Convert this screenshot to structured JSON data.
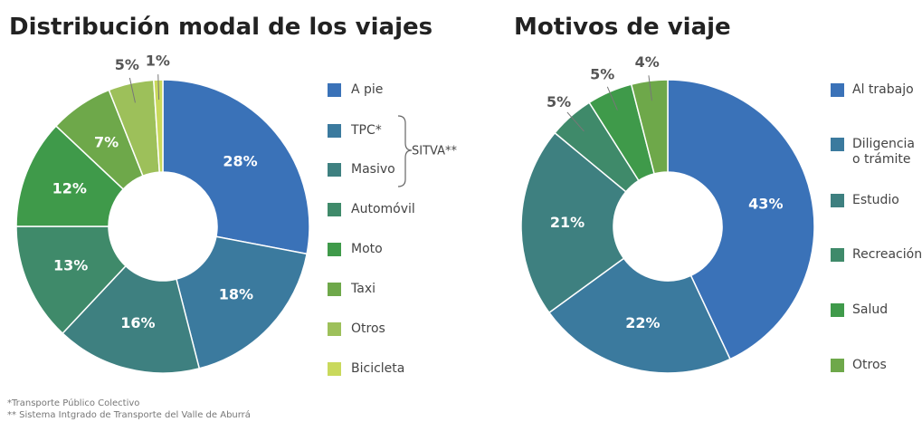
{
  "chart_data": [
    {
      "type": "donut",
      "title": "Distribución modal de los viajes",
      "categories": [
        "A pie",
        "TPC*",
        "Masivo",
        "Automóvil",
        "Moto",
        "Taxi",
        "Otros",
        "Bicicleta"
      ],
      "values": [
        28,
        18,
        16,
        13,
        12,
        7,
        5,
        1
      ],
      "value_labels": [
        "28%",
        "18%",
        "16%",
        "13%",
        "12%",
        "7%",
        "5%",
        "1%"
      ],
      "colors": [
        "#3a72b8",
        "#3b7a9e",
        "#3e8080",
        "#3f8a6a",
        "#3f9a4a",
        "#6ea84a",
        "#9dc05a",
        "#c9d95c"
      ],
      "legend_group": "SITVA**"
    },
    {
      "type": "donut",
      "title": "Motivos de viaje",
      "categories": [
        "Al trabajo",
        "Diligencia o trámite",
        "Estudio",
        "Recreación",
        "Salud",
        "Otros"
      ],
      "values": [
        43,
        22,
        21,
        5,
        5,
        4
      ],
      "value_labels": [
        "43%",
        "22%",
        "21%",
        "5%",
        "5%",
        "4%"
      ],
      "colors": [
        "#3a72b8",
        "#3b7a9e",
        "#3e8080",
        "#3f8a6a",
        "#3f9a4a",
        "#6ea84a"
      ]
    }
  ],
  "footnotes": [
    "*Transporte Público Colectivo",
    "** Sistema Intgrado de Transporte del Valle de Aburrá"
  ]
}
